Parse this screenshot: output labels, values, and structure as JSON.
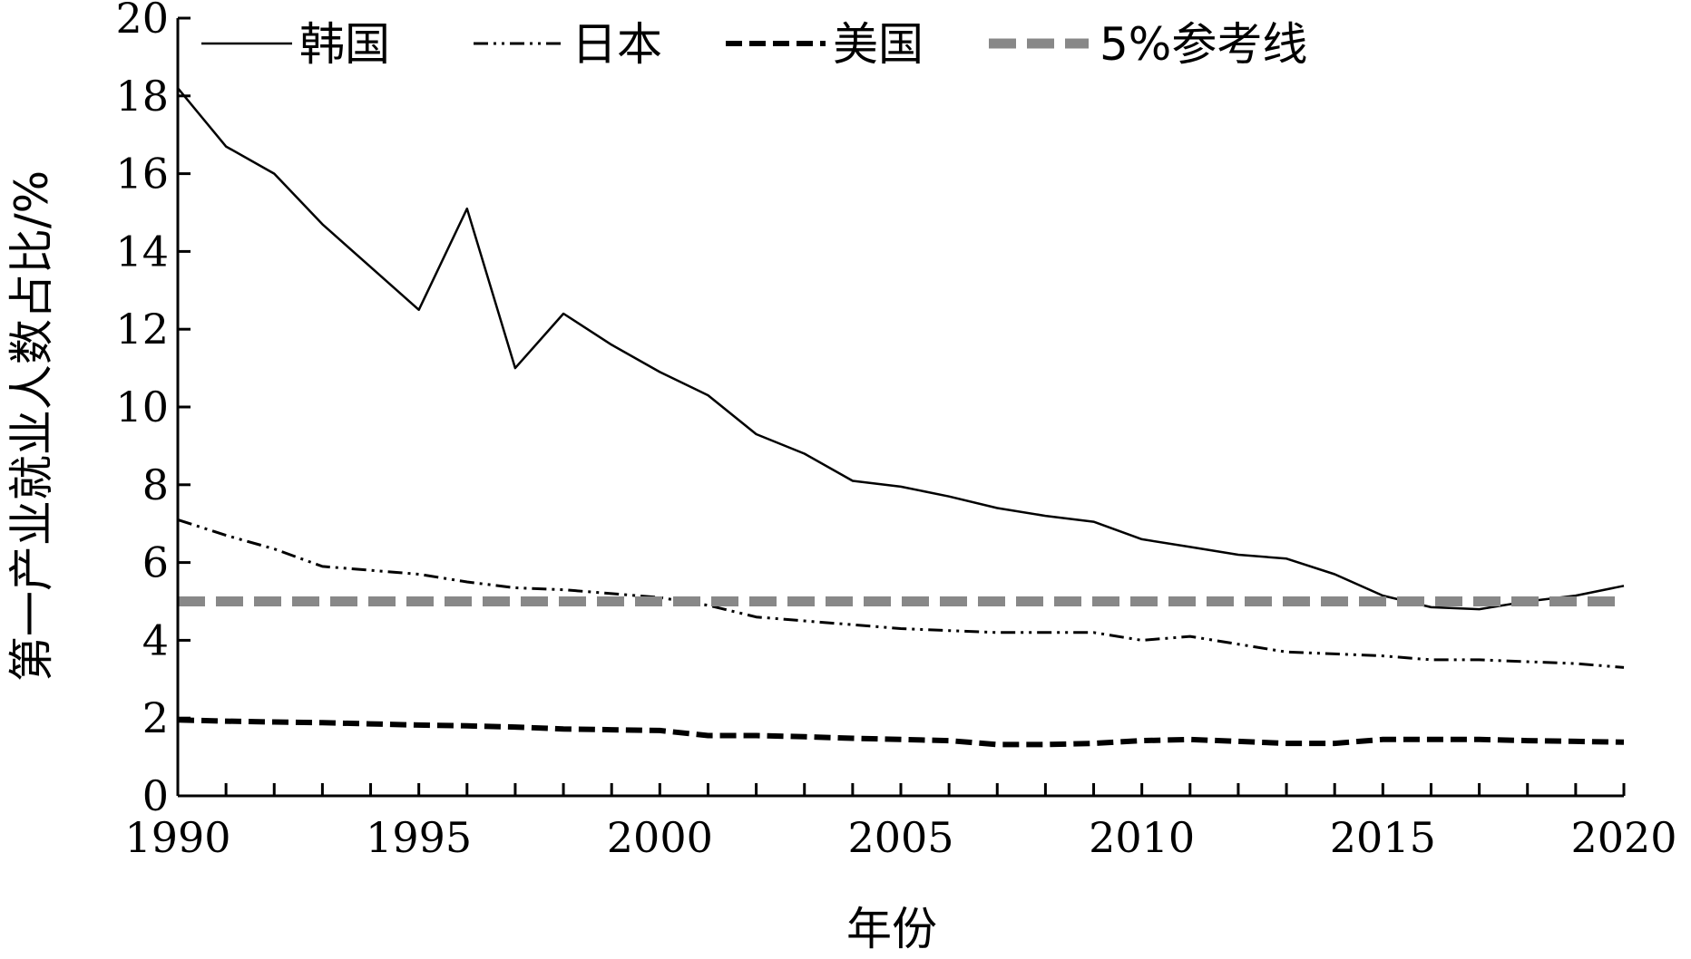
{
  "chart_data": {
    "type": "line",
    "xlabel": "年份",
    "ylabel": "第一产业就业人数占比/%",
    "xlim": [
      1990,
      2020
    ],
    "ylim": [
      0,
      20
    ],
    "x_ticks": [
      "1990",
      "1995",
      "2000",
      "2005",
      "2010",
      "2015",
      "2020"
    ],
    "y_ticks": [
      "0",
      "2",
      "4",
      "6",
      "8",
      "10",
      "12",
      "14",
      "16",
      "18",
      "20"
    ],
    "grid": false,
    "legend_position": "top",
    "x": [
      1990,
      1991,
      1992,
      1993,
      1994,
      1995,
      1996,
      1997,
      1998,
      1999,
      2000,
      2001,
      2002,
      2003,
      2004,
      2005,
      2006,
      2007,
      2008,
      2009,
      2010,
      2011,
      2012,
      2013,
      2014,
      2015,
      2016,
      2017,
      2018,
      2019,
      2020
    ],
    "series": [
      {
        "name": "韩国",
        "style": "solid",
        "color": "#000000",
        "values": [
          18.2,
          16.7,
          16.0,
          14.7,
          13.6,
          12.5,
          15.1,
          11.0,
          12.4,
          11.6,
          10.9,
          10.3,
          9.3,
          8.8,
          8.1,
          7.95,
          7.7,
          7.4,
          7.2,
          7.05,
          6.6,
          6.4,
          6.2,
          6.1,
          5.7,
          5.15,
          4.85,
          4.8,
          5.0,
          5.15,
          5.4
        ]
      },
      {
        "name": "日本",
        "style": "dash-dot-dot",
        "color": "#000000",
        "values": [
          7.1,
          6.7,
          6.35,
          5.9,
          5.8,
          5.7,
          5.5,
          5.35,
          5.3,
          5.2,
          5.1,
          4.9,
          4.6,
          4.5,
          4.4,
          4.3,
          4.25,
          4.2,
          4.2,
          4.2,
          4.0,
          4.1,
          3.9,
          3.7,
          3.65,
          3.6,
          3.5,
          3.5,
          3.45,
          3.4,
          3.3
        ]
      },
      {
        "name": "美国",
        "style": "dashed",
        "color": "#000000",
        "values": [
          1.95,
          1.92,
          1.9,
          1.88,
          1.85,
          1.82,
          1.8,
          1.77,
          1.72,
          1.7,
          1.68,
          1.55,
          1.55,
          1.52,
          1.48,
          1.45,
          1.42,
          1.32,
          1.32,
          1.35,
          1.42,
          1.45,
          1.4,
          1.35,
          1.35,
          1.45,
          1.45,
          1.45,
          1.42,
          1.4,
          1.38
        ]
      },
      {
        "name": "5%参考线",
        "style": "thick-dashed",
        "color": "#888888",
        "values": [
          5,
          5,
          5,
          5,
          5,
          5,
          5,
          5,
          5,
          5,
          5,
          5,
          5,
          5,
          5,
          5,
          5,
          5,
          5,
          5,
          5,
          5,
          5,
          5,
          5,
          5,
          5,
          5,
          5,
          5,
          5
        ]
      }
    ]
  }
}
